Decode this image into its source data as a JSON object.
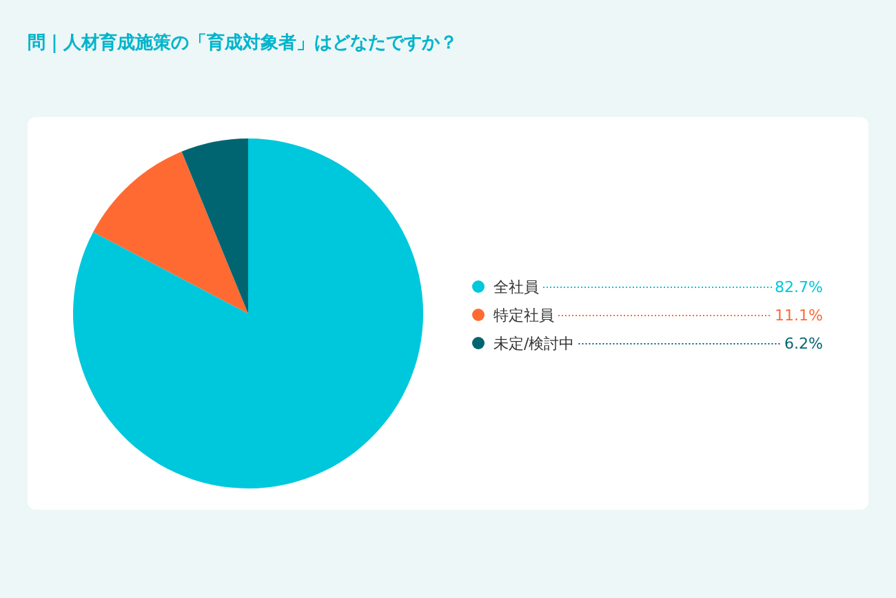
{
  "chart_data": {
    "type": "pie",
    "title": "問｜人材育成施策の「育成対象者」はどなたですか？",
    "categories": [
      "全社員",
      "特定社員",
      "未定/検討中"
    ],
    "values": [
      82.7,
      11.1,
      6.2
    ],
    "colors": [
      "#00c8dc",
      "#ff6a33",
      "#006570"
    ],
    "value_labels": [
      "82.7%",
      "11.1%",
      "6.2%"
    ],
    "legend": "right"
  }
}
